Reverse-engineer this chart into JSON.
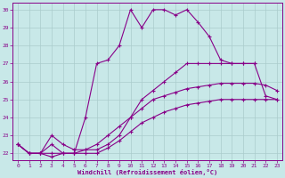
{
  "bg_color": "#c8e8e8",
  "line_color": "#880088",
  "grid_color": "#aacccc",
  "xlabel": "Windchill (Refroidissement éolien,°C)",
  "xlim_min": -0.5,
  "xlim_max": 23.5,
  "ylim_min": 21.6,
  "ylim_max": 30.4,
  "xticks": [
    0,
    1,
    2,
    3,
    4,
    5,
    6,
    7,
    8,
    9,
    10,
    11,
    12,
    13,
    14,
    15,
    16,
    17,
    18,
    19,
    20,
    21,
    22,
    23
  ],
  "yticks": [
    22,
    23,
    24,
    25,
    26,
    27,
    28,
    29,
    30
  ],
  "curves": [
    {
      "x": [
        0,
        1,
        2,
        3,
        4,
        5,
        6,
        7,
        8,
        9,
        10,
        11,
        12,
        13,
        14,
        15,
        16,
        17,
        18,
        19,
        20,
        21
      ],
      "y": [
        22.5,
        22.0,
        22.0,
        22.5,
        22.0,
        22.0,
        24.0,
        27.0,
        27.2,
        28.0,
        30.0,
        29.0,
        30.0,
        30.0,
        29.7,
        30.0,
        29.3,
        28.5,
        27.2,
        27.0,
        27.0,
        27.0
      ]
    },
    {
      "x": [
        0,
        1,
        2,
        3,
        4,
        5,
        6,
        7,
        8,
        9,
        10,
        11,
        12,
        13,
        14,
        15,
        16,
        17,
        18,
        19,
        20,
        21,
        22,
        23
      ],
      "y": [
        22.5,
        22.0,
        22.0,
        23.0,
        22.5,
        22.2,
        22.2,
        22.2,
        22.5,
        23.0,
        24.0,
        25.0,
        25.5,
        26.0,
        26.5,
        27.0,
        27.0,
        27.0,
        27.0,
        27.0,
        27.0,
        27.0,
        25.2,
        25.0
      ]
    },
    {
      "x": [
        0,
        1,
        2,
        3,
        4,
        5,
        6,
        7,
        8,
        9,
        10,
        11,
        12,
        13,
        14,
        15,
        16,
        17,
        18,
        19,
        20,
        21,
        22,
        23
      ],
      "y": [
        22.5,
        22.0,
        22.0,
        22.0,
        22.0,
        22.0,
        22.2,
        22.5,
        23.0,
        23.5,
        24.0,
        24.5,
        25.0,
        25.2,
        25.4,
        25.6,
        25.7,
        25.8,
        25.9,
        25.9,
        25.9,
        25.9,
        25.8,
        25.5
      ]
    },
    {
      "x": [
        0,
        1,
        2,
        3,
        4,
        5,
        6,
        7,
        8,
        9,
        10,
        11,
        12,
        13,
        14,
        15,
        16,
        17,
        18,
        19,
        20,
        21,
        22,
        23
      ],
      "y": [
        22.5,
        22.0,
        22.0,
        21.8,
        22.0,
        22.0,
        22.0,
        22.0,
        22.3,
        22.7,
        23.2,
        23.7,
        24.0,
        24.3,
        24.5,
        24.7,
        24.8,
        24.9,
        25.0,
        25.0,
        25.0,
        25.0,
        25.0,
        25.0
      ]
    }
  ]
}
